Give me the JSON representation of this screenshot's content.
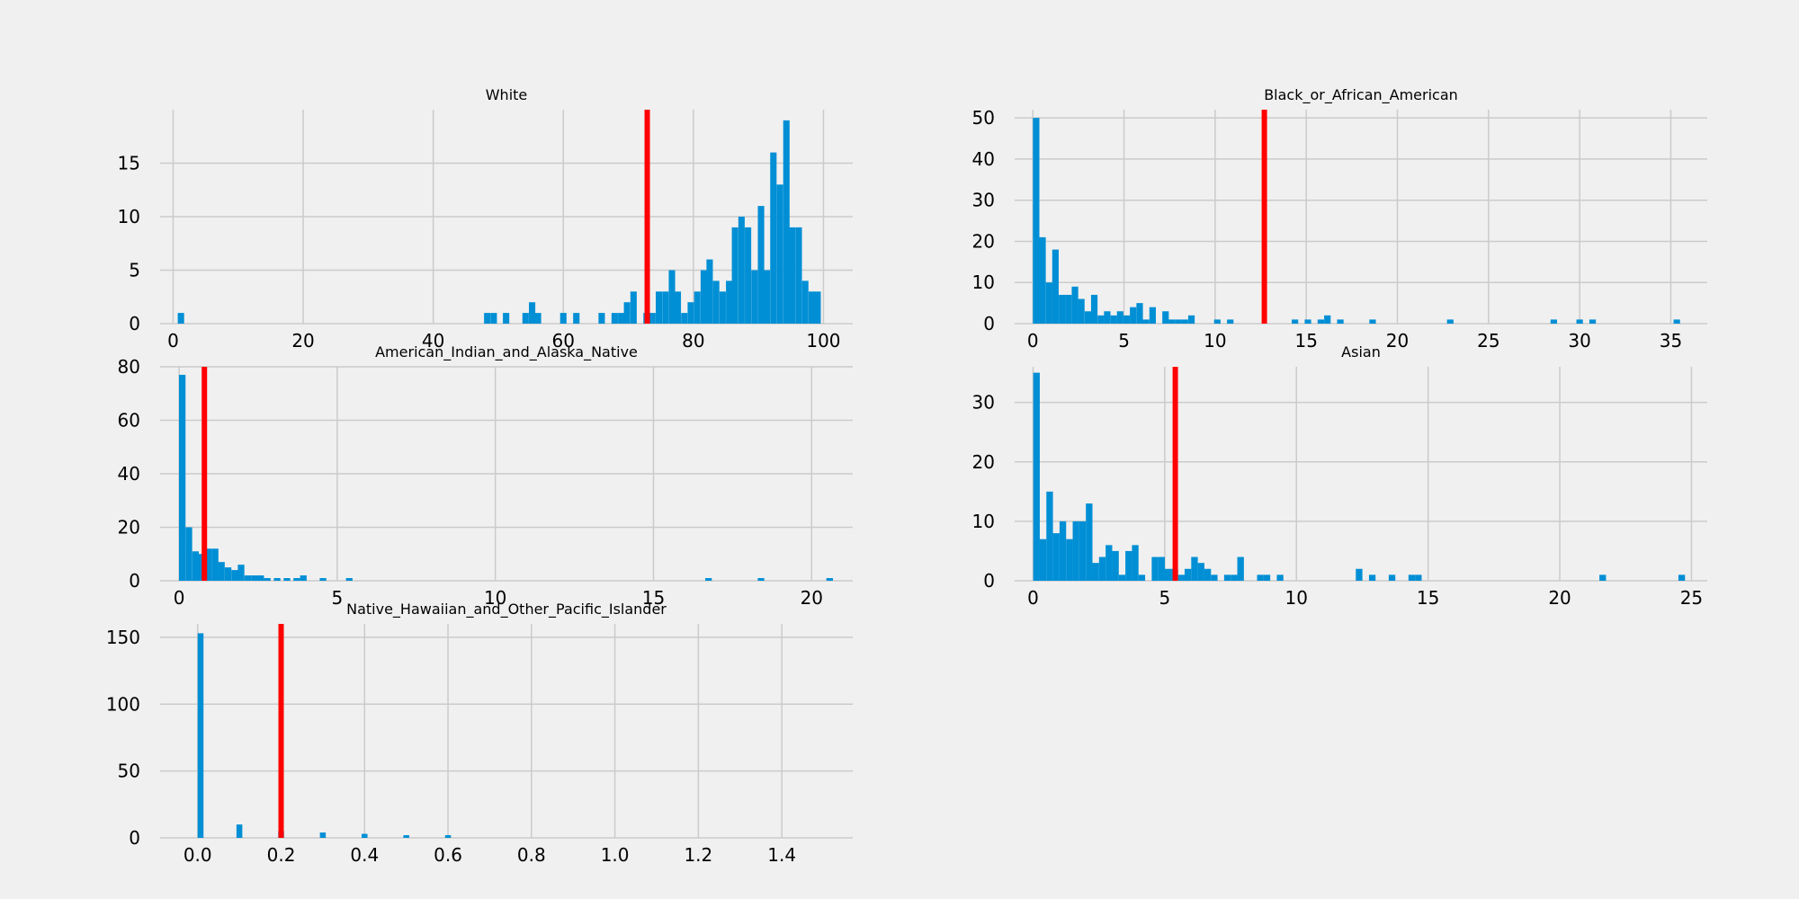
{
  "colors": {
    "background": "#f0f0f0",
    "bar": "#008fd5",
    "mean_line": "#ff0000",
    "grid": "#cbcbcb"
  },
  "chart_data": [
    {
      "type": "bar",
      "title": "White",
      "xlabel": "",
      "ylabel": "",
      "xlim": [
        -2,
        104.5
      ],
      "ylim": [
        0,
        20
      ],
      "xticks": [
        "0",
        "20",
        "40",
        "60",
        "80",
        "100"
      ],
      "xtick_values": [
        0,
        20,
        40,
        60,
        80,
        100
      ],
      "yticks": [
        "0",
        "5",
        "10",
        "15"
      ],
      "ytick_values": [
        0,
        5,
        10,
        15
      ],
      "bin_width": 0.98,
      "mean_line": 72.9,
      "bins": [
        {
          "x": 1.2,
          "y": 1
        },
        {
          "x": 48.3,
          "y": 1
        },
        {
          "x": 49.3,
          "y": 1
        },
        {
          "x": 51.2,
          "y": 1
        },
        {
          "x": 54.2,
          "y": 1
        },
        {
          "x": 55.2,
          "y": 2
        },
        {
          "x": 56.1,
          "y": 1
        },
        {
          "x": 60.0,
          "y": 1
        },
        {
          "x": 62.0,
          "y": 1
        },
        {
          "x": 65.9,
          "y": 1
        },
        {
          "x": 67.9,
          "y": 1
        },
        {
          "x": 68.9,
          "y": 1
        },
        {
          "x": 69.8,
          "y": 2
        },
        {
          "x": 70.8,
          "y": 3
        },
        {
          "x": 72.8,
          "y": 1
        },
        {
          "x": 73.7,
          "y": 1
        },
        {
          "x": 74.7,
          "y": 3
        },
        {
          "x": 75.7,
          "y": 3
        },
        {
          "x": 76.7,
          "y": 5
        },
        {
          "x": 77.6,
          "y": 3
        },
        {
          "x": 78.6,
          "y": 1
        },
        {
          "x": 79.6,
          "y": 2
        },
        {
          "x": 80.6,
          "y": 3
        },
        {
          "x": 81.6,
          "y": 5
        },
        {
          "x": 82.5,
          "y": 6
        },
        {
          "x": 83.5,
          "y": 4
        },
        {
          "x": 84.5,
          "y": 3
        },
        {
          "x": 85.5,
          "y": 4
        },
        {
          "x": 86.4,
          "y": 9
        },
        {
          "x": 87.4,
          "y": 10
        },
        {
          "x": 88.4,
          "y": 9
        },
        {
          "x": 89.4,
          "y": 5
        },
        {
          "x": 90.4,
          "y": 11
        },
        {
          "x": 91.3,
          "y": 5
        },
        {
          "x": 92.3,
          "y": 16
        },
        {
          "x": 93.3,
          "y": 13
        },
        {
          "x": 94.3,
          "y": 19
        },
        {
          "x": 95.2,
          "y": 9
        },
        {
          "x": 96.2,
          "y": 9
        },
        {
          "x": 97.2,
          "y": 4
        },
        {
          "x": 98.2,
          "y": 3
        },
        {
          "x": 99.1,
          "y": 3
        }
      ]
    },
    {
      "type": "bar",
      "title": "Black_or_African_American",
      "xlabel": "",
      "ylabel": "",
      "xlim": [
        -1,
        37
      ],
      "ylim": [
        0,
        52
      ],
      "xticks": [
        "0",
        "5",
        "10",
        "15",
        "20",
        "25",
        "30",
        "35"
      ],
      "xtick_values": [
        0,
        5,
        10,
        15,
        20,
        25,
        30,
        35
      ],
      "yticks": [
        "0",
        "10",
        "20",
        "30",
        "40",
        "50"
      ],
      "ytick_values": [
        0,
        10,
        20,
        30,
        40,
        50
      ],
      "bin_width": 0.355,
      "mean_line": 12.7,
      "bins": [
        {
          "x": 0.18,
          "y": 50
        },
        {
          "x": 0.53,
          "y": 21
        },
        {
          "x": 0.89,
          "y": 10
        },
        {
          "x": 1.24,
          "y": 18
        },
        {
          "x": 1.6,
          "y": 7
        },
        {
          "x": 1.95,
          "y": 7
        },
        {
          "x": 2.31,
          "y": 9
        },
        {
          "x": 2.66,
          "y": 6
        },
        {
          "x": 3.02,
          "y": 3
        },
        {
          "x": 3.37,
          "y": 7
        },
        {
          "x": 3.73,
          "y": 2
        },
        {
          "x": 4.08,
          "y": 3
        },
        {
          "x": 4.44,
          "y": 2
        },
        {
          "x": 4.79,
          "y": 3
        },
        {
          "x": 5.15,
          "y": 2
        },
        {
          "x": 5.5,
          "y": 4
        },
        {
          "x": 5.86,
          "y": 5
        },
        {
          "x": 6.21,
          "y": 1
        },
        {
          "x": 6.57,
          "y": 4
        },
        {
          "x": 7.28,
          "y": 3
        },
        {
          "x": 7.63,
          "y": 1
        },
        {
          "x": 7.99,
          "y": 1
        },
        {
          "x": 8.34,
          "y": 1
        },
        {
          "x": 8.7,
          "y": 2
        },
        {
          "x": 10.12,
          "y": 1
        },
        {
          "x": 10.83,
          "y": 1
        },
        {
          "x": 14.38,
          "y": 1
        },
        {
          "x": 15.09,
          "y": 1
        },
        {
          "x": 15.8,
          "y": 1
        },
        {
          "x": 16.16,
          "y": 2
        },
        {
          "x": 16.87,
          "y": 1
        },
        {
          "x": 18.64,
          "y": 1
        },
        {
          "x": 22.9,
          "y": 1
        },
        {
          "x": 28.58,
          "y": 1
        },
        {
          "x": 30.0,
          "y": 1
        },
        {
          "x": 30.71,
          "y": 1
        },
        {
          "x": 35.33,
          "y": 1
        }
      ]
    },
    {
      "type": "bar",
      "title": "American_Indian_and_Alaska_Native",
      "xlabel": "",
      "ylabel": "",
      "xlim": [
        -0.6,
        21.3
      ],
      "ylim": [
        0,
        80
      ],
      "xticks": [
        "0",
        "5",
        "10",
        "15",
        "20"
      ],
      "xtick_values": [
        0,
        5,
        10,
        15,
        20
      ],
      "yticks": [
        "0",
        "20",
        "40",
        "60",
        "80"
      ],
      "ytick_values": [
        0,
        20,
        40,
        60,
        80
      ],
      "bin_width": 0.207,
      "mean_line": 0.8,
      "bins": [
        {
          "x": 0.1,
          "y": 77
        },
        {
          "x": 0.31,
          "y": 20
        },
        {
          "x": 0.52,
          "y": 11
        },
        {
          "x": 0.72,
          "y": 10
        },
        {
          "x": 0.93,
          "y": 12
        },
        {
          "x": 1.14,
          "y": 12
        },
        {
          "x": 1.34,
          "y": 7
        },
        {
          "x": 1.55,
          "y": 5
        },
        {
          "x": 1.76,
          "y": 4
        },
        {
          "x": 1.96,
          "y": 6
        },
        {
          "x": 2.17,
          "y": 2
        },
        {
          "x": 2.38,
          "y": 2
        },
        {
          "x": 2.58,
          "y": 2
        },
        {
          "x": 2.79,
          "y": 1
        },
        {
          "x": 3.1,
          "y": 1
        },
        {
          "x": 3.41,
          "y": 1
        },
        {
          "x": 3.72,
          "y": 1
        },
        {
          "x": 3.93,
          "y": 2
        },
        {
          "x": 4.55,
          "y": 1
        },
        {
          "x": 5.38,
          "y": 1
        },
        {
          "x": 16.74,
          "y": 1
        },
        {
          "x": 18.4,
          "y": 1
        },
        {
          "x": 20.57,
          "y": 1
        }
      ]
    },
    {
      "type": "bar",
      "title": "Asian",
      "xlabel": "",
      "ylabel": "",
      "xlim": [
        -0.7,
        25.6
      ],
      "ylim": [
        0,
        36
      ],
      "xticks": [
        "0",
        "5",
        "10",
        "15",
        "20",
        "25"
      ],
      "xtick_values": [
        0,
        5,
        10,
        15,
        20,
        25
      ],
      "yticks": [
        "0",
        "10",
        "20",
        "30"
      ],
      "ytick_values": [
        0,
        10,
        20,
        30
      ],
      "bin_width": 0.25,
      "mean_line": 5.4,
      "bins": [
        {
          "x": 0.13,
          "y": 35
        },
        {
          "x": 0.38,
          "y": 7
        },
        {
          "x": 0.63,
          "y": 15
        },
        {
          "x": 0.88,
          "y": 8
        },
        {
          "x": 1.13,
          "y": 10
        },
        {
          "x": 1.38,
          "y": 7
        },
        {
          "x": 1.63,
          "y": 10
        },
        {
          "x": 1.88,
          "y": 10
        },
        {
          "x": 2.13,
          "y": 13
        },
        {
          "x": 2.38,
          "y": 3
        },
        {
          "x": 2.63,
          "y": 4
        },
        {
          "x": 2.88,
          "y": 6
        },
        {
          "x": 3.13,
          "y": 5
        },
        {
          "x": 3.38,
          "y": 1
        },
        {
          "x": 3.63,
          "y": 5
        },
        {
          "x": 3.88,
          "y": 6
        },
        {
          "x": 4.13,
          "y": 1
        },
        {
          "x": 4.63,
          "y": 4
        },
        {
          "x": 4.88,
          "y": 4
        },
        {
          "x": 5.13,
          "y": 2
        },
        {
          "x": 5.38,
          "y": 2
        },
        {
          "x": 5.63,
          "y": 1
        },
        {
          "x": 5.88,
          "y": 2
        },
        {
          "x": 6.13,
          "y": 4
        },
        {
          "x": 6.38,
          "y": 3
        },
        {
          "x": 6.63,
          "y": 2
        },
        {
          "x": 6.88,
          "y": 1
        },
        {
          "x": 7.38,
          "y": 1
        },
        {
          "x": 7.63,
          "y": 1
        },
        {
          "x": 7.88,
          "y": 4
        },
        {
          "x": 8.63,
          "y": 1
        },
        {
          "x": 8.88,
          "y": 1
        },
        {
          "x": 9.38,
          "y": 1
        },
        {
          "x": 12.38,
          "y": 2
        },
        {
          "x": 12.88,
          "y": 1
        },
        {
          "x": 13.63,
          "y": 1
        },
        {
          "x": 14.38,
          "y": 1
        },
        {
          "x": 14.63,
          "y": 1
        },
        {
          "x": 21.63,
          "y": 1
        },
        {
          "x": 24.63,
          "y": 1
        }
      ]
    },
    {
      "type": "bar",
      "title": "Native_Hawaiian_and_Other_Pacific_Islander",
      "xlabel": "",
      "ylabel": "",
      "xlim": [
        -0.09,
        1.57
      ],
      "ylim": [
        0,
        160
      ],
      "xticks": [
        "0.0",
        "0.2",
        "0.4",
        "0.6",
        "0.8",
        "1.0",
        "1.2",
        "1.4"
      ],
      "xtick_values": [
        0,
        0.2,
        0.4,
        0.6,
        0.8,
        1.0,
        1.2,
        1.4
      ],
      "yticks": [
        "0",
        "50",
        "100",
        "150"
      ],
      "ytick_values": [
        0,
        50,
        100,
        150
      ],
      "bin_width": 0.014,
      "mean_line": 0.2,
      "bins": [
        {
          "x": 0.007,
          "y": 153
        },
        {
          "x": 0.1,
          "y": 10
        },
        {
          "x": 0.2,
          "y": 5
        },
        {
          "x": 0.3,
          "y": 4
        },
        {
          "x": 0.4,
          "y": 3
        },
        {
          "x": 0.5,
          "y": 2
        },
        {
          "x": 0.6,
          "y": 2
        }
      ]
    }
  ]
}
